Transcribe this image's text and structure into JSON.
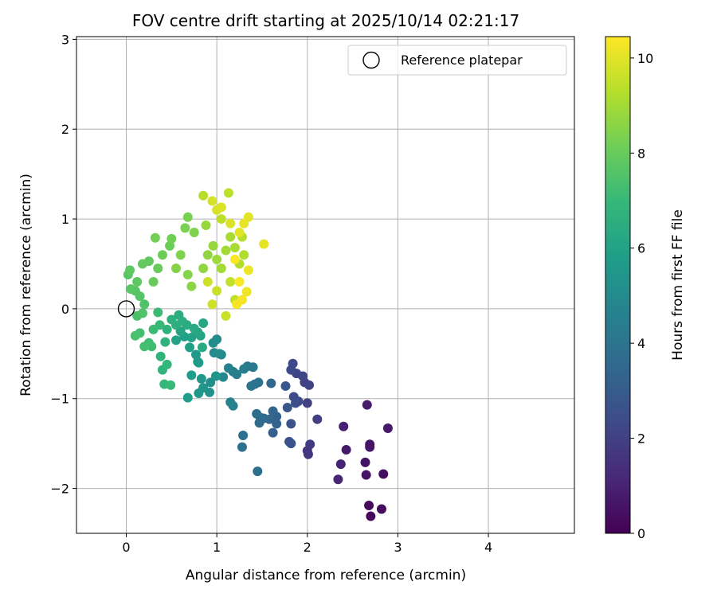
{
  "chart_data": {
    "type": "scatter",
    "title": "FOV centre drift starting at 2025/10/14 02:21:17",
    "xlabel": "Angular distance from reference (arcmin)",
    "ylabel": "Rotation from reference (arcmin)",
    "xlim": [
      -0.55,
      4.95
    ],
    "ylim": [
      -2.5,
      3.03
    ],
    "xticks": [
      0,
      1,
      2,
      3,
      4
    ],
    "xtick_labels": [
      "0",
      "1",
      "2",
      "3",
      "4"
    ],
    "yticks": [
      -2,
      -1,
      0,
      1,
      2,
      3
    ],
    "ytick_labels": [
      "−2",
      "−1",
      "0",
      "1",
      "2",
      "3"
    ],
    "grid": true,
    "legend": {
      "position": "top-right",
      "label": "Reference platepar"
    },
    "reference_point": {
      "x": 0,
      "y": 0
    },
    "colorbar": {
      "label": "Hours from first FF file",
      "range": [
        0,
        10.45
      ],
      "ticks": [
        0,
        2,
        4,
        6,
        8,
        10
      ],
      "tick_labels": [
        "0",
        "2",
        "4",
        "6",
        "8",
        "10"
      ],
      "colormap": "viridis",
      "colormap_stops": [
        "#440154",
        "#482878",
        "#3e4a89",
        "#31688e",
        "#26828e",
        "#1f9e89",
        "#35b779",
        "#6ece58",
        "#b5de2b",
        "#fde725"
      ]
    },
    "series": [
      {
        "name": "FOV centre",
        "points": [
          [
            2.7,
            -2.31,
            0.2
          ],
          [
            2.82,
            -2.23,
            0.3
          ],
          [
            2.68,
            -2.19,
            0.3
          ],
          [
            2.84,
            -1.84,
            0.4
          ],
          [
            2.65,
            -1.85,
            0.5
          ],
          [
            2.64,
            -1.71,
            0.5
          ],
          [
            2.69,
            -1.51,
            0.6
          ],
          [
            2.69,
            -1.54,
            0.6
          ],
          [
            2.43,
            -1.57,
            0.7
          ],
          [
            2.89,
            -1.33,
            0.7
          ],
          [
            2.66,
            -1.07,
            0.8
          ],
          [
            2.4,
            -1.31,
            0.9
          ],
          [
            2.37,
            -1.73,
            1.0
          ],
          [
            2.34,
            -1.9,
            1.1
          ],
          [
            2.0,
            -1.58,
            1.6
          ],
          [
            2.01,
            -1.62,
            1.7
          ],
          [
            2.03,
            -1.51,
            1.8
          ],
          [
            2.11,
            -1.23,
            1.9
          ],
          [
            2.0,
            -1.05,
            2.0
          ],
          [
            1.97,
            -0.82,
            2.0
          ],
          [
            2.02,
            -0.85,
            2.1
          ],
          [
            1.95,
            -0.75,
            2.2
          ],
          [
            1.88,
            -0.72,
            2.2
          ],
          [
            1.84,
            -0.61,
            2.3
          ],
          [
            1.82,
            -0.68,
            2.3
          ],
          [
            1.9,
            -1.03,
            2.4
          ],
          [
            1.85,
            -0.98,
            2.4
          ],
          [
            1.87,
            -1.05,
            2.5
          ],
          [
            1.82,
            -1.28,
            2.6
          ],
          [
            1.8,
            -1.48,
            2.6
          ],
          [
            1.82,
            -1.5,
            2.7
          ],
          [
            1.78,
            -1.1,
            2.8
          ],
          [
            1.76,
            -0.86,
            2.8
          ],
          [
            1.62,
            -1.38,
            3.2
          ],
          [
            1.66,
            -1.28,
            3.3
          ],
          [
            1.66,
            -1.2,
            3.3
          ],
          [
            1.62,
            -1.14,
            3.4
          ],
          [
            1.58,
            -1.23,
            3.4
          ],
          [
            1.6,
            -0.83,
            3.5
          ],
          [
            1.52,
            -1.22,
            3.6
          ],
          [
            1.47,
            -1.27,
            3.6
          ],
          [
            1.44,
            -1.17,
            3.7
          ],
          [
            1.48,
            -1.21,
            3.7
          ],
          [
            1.45,
            -1.81,
            3.8
          ],
          [
            1.28,
            -1.54,
            3.9
          ],
          [
            1.29,
            -1.41,
            3.9
          ],
          [
            1.42,
            -0.84,
            4.0
          ],
          [
            1.46,
            -0.82,
            4.0
          ],
          [
            1.38,
            -0.86,
            4.1
          ],
          [
            1.34,
            -0.64,
            4.2
          ],
          [
            1.4,
            -0.65,
            4.2
          ],
          [
            1.3,
            -0.67,
            4.4
          ],
          [
            1.22,
            -0.73,
            4.5
          ],
          [
            1.18,
            -0.7,
            4.5
          ],
          [
            1.13,
            -0.66,
            4.6
          ],
          [
            1.18,
            -1.08,
            4.6
          ],
          [
            1.15,
            -1.04,
            4.7
          ],
          [
            1.05,
            -0.51,
            4.8
          ],
          [
            1.07,
            -0.76,
            4.8
          ],
          [
            0.97,
            -0.49,
            5.0
          ],
          [
            1.03,
            -0.5,
            5.0
          ],
          [
            1.0,
            -0.34,
            5.1
          ],
          [
            0.96,
            -0.38,
            5.1
          ],
          [
            0.93,
            -0.82,
            5.2
          ],
          [
            0.92,
            -0.93,
            5.3
          ],
          [
            0.99,
            -0.75,
            5.4
          ],
          [
            0.85,
            -0.88,
            5.4
          ],
          [
            0.8,
            -0.94,
            5.5
          ],
          [
            0.83,
            -0.78,
            5.5
          ],
          [
            0.79,
            -0.59,
            5.6
          ],
          [
            0.77,
            -0.51,
            5.6
          ],
          [
            0.8,
            -0.6,
            5.7
          ],
          [
            0.72,
            -0.74,
            5.8
          ],
          [
            0.68,
            -0.99,
            5.8
          ],
          [
            0.64,
            -0.31,
            5.9
          ],
          [
            0.7,
            -0.43,
            5.9
          ],
          [
            0.72,
            -0.32,
            6.0
          ],
          [
            0.55,
            -0.35,
            6.0
          ],
          [
            0.6,
            -0.25,
            6.1
          ],
          [
            0.82,
            -0.3,
            6.1
          ],
          [
            0.85,
            -0.16,
            6.2
          ],
          [
            0.79,
            -0.26,
            6.2
          ],
          [
            0.84,
            -0.43,
            6.3
          ],
          [
            0.75,
            -0.22,
            6.3
          ],
          [
            0.67,
            -0.18,
            6.4
          ],
          [
            0.62,
            -0.14,
            6.5
          ],
          [
            0.58,
            -0.07,
            6.5
          ],
          [
            0.55,
            -0.18,
            6.6
          ],
          [
            0.5,
            -0.12,
            6.6
          ],
          [
            0.45,
            -0.23,
            6.7
          ],
          [
            0.43,
            -0.37,
            6.7
          ],
          [
            0.38,
            -0.53,
            6.8
          ],
          [
            0.4,
            -0.68,
            6.8
          ],
          [
            0.42,
            -0.84,
            6.9
          ],
          [
            0.45,
            -0.62,
            6.9
          ],
          [
            0.49,
            -0.85,
            7.0
          ],
          [
            0.37,
            -0.18,
            7.0
          ],
          [
            0.35,
            -0.04,
            7.1
          ],
          [
            0.3,
            -0.23,
            7.1
          ],
          [
            0.25,
            -0.38,
            7.2
          ],
          [
            0.28,
            -0.42,
            7.2
          ],
          [
            0.2,
            -0.42,
            7.3
          ],
          [
            0.15,
            -0.27,
            7.3
          ],
          [
            0.1,
            -0.3,
            7.4
          ],
          [
            0.12,
            -0.08,
            7.4
          ],
          [
            0.18,
            -0.05,
            7.5
          ],
          [
            0.2,
            0.05,
            7.5
          ],
          [
            0.15,
            0.14,
            7.6
          ],
          [
            0.1,
            0.2,
            7.6
          ],
          [
            0.05,
            0.22,
            7.7
          ],
          [
            0.02,
            0.38,
            7.7
          ],
          [
            0.04,
            0.43,
            7.8
          ],
          [
            0.12,
            0.3,
            7.8
          ],
          [
            0.18,
            0.5,
            7.9
          ],
          [
            0.25,
            0.53,
            7.9
          ],
          [
            0.3,
            0.3,
            8.0
          ],
          [
            0.35,
            0.45,
            8.0
          ],
          [
            0.4,
            0.6,
            8.1
          ],
          [
            0.48,
            0.7,
            8.1
          ],
          [
            0.5,
            0.78,
            8.2
          ],
          [
            0.32,
            0.79,
            8.2
          ],
          [
            0.65,
            0.9,
            8.3
          ],
          [
            0.68,
            1.02,
            8.3
          ],
          [
            0.75,
            0.85,
            8.4
          ],
          [
            0.6,
            0.6,
            8.4
          ],
          [
            0.55,
            0.45,
            8.5
          ],
          [
            0.68,
            0.38,
            8.5
          ],
          [
            0.72,
            0.25,
            8.6
          ],
          [
            0.85,
            0.45,
            8.7
          ],
          [
            0.9,
            0.6,
            8.7
          ],
          [
            0.88,
            0.93,
            8.8
          ],
          [
            0.96,
            0.7,
            8.8
          ],
          [
            1.0,
            0.55,
            8.9
          ],
          [
            1.05,
            0.45,
            9.0
          ],
          [
            1.1,
            0.65,
            9.0
          ],
          [
            1.15,
            0.8,
            9.1
          ],
          [
            1.2,
            0.68,
            9.1
          ],
          [
            1.25,
            0.5,
            9.2
          ],
          [
            1.3,
            0.6,
            9.2
          ],
          [
            1.28,
            0.8,
            9.3
          ],
          [
            0.85,
            1.26,
            9.3
          ],
          [
            1.13,
            1.29,
            9.4
          ],
          [
            1.05,
            1.0,
            9.4
          ],
          [
            1.15,
            0.3,
            9.5
          ],
          [
            1.2,
            0.1,
            9.5
          ],
          [
            1.1,
            -0.08,
            9.6
          ],
          [
            1.0,
            0.2,
            9.6
          ],
          [
            0.95,
            0.05,
            9.7
          ],
          [
            0.9,
            0.3,
            9.7
          ],
          [
            0.95,
            1.2,
            9.8
          ],
          [
            1.0,
            1.1,
            9.8
          ],
          [
            1.05,
            1.13,
            9.9
          ],
          [
            1.15,
            0.95,
            9.9
          ],
          [
            1.25,
            0.85,
            10.0
          ],
          [
            1.35,
            1.02,
            10.0
          ],
          [
            1.3,
            0.95,
            10.1
          ],
          [
            1.52,
            0.72,
            10.1
          ],
          [
            1.35,
            0.43,
            10.2
          ],
          [
            1.33,
            0.19,
            10.2
          ],
          [
            1.28,
            0.1,
            10.3
          ],
          [
            1.22,
            0.05,
            10.3
          ],
          [
            1.25,
            0.3,
            10.4
          ],
          [
            1.2,
            0.55,
            10.4
          ]
        ]
      }
    ]
  }
}
